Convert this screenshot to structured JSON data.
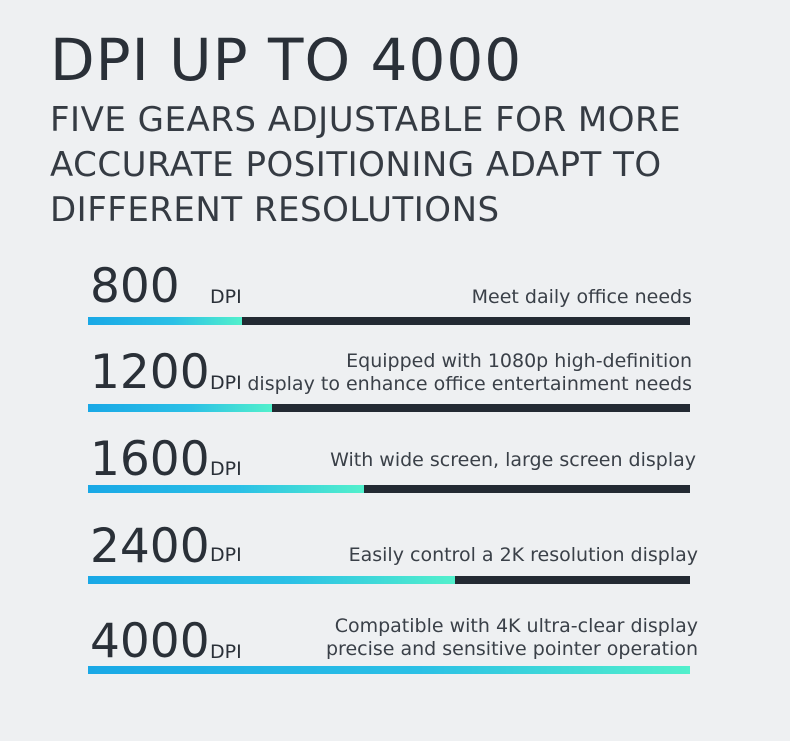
{
  "title": "DPI UP TO 4000",
  "subtitle": "FIVE GEARS ADJUSTABLE FOR MORE ACCURATE POSITIONING ADAPT TO DIFFERENT RESOLUTIONS",
  "unit": "DPI",
  "levels": [
    {
      "value": "800",
      "desc_line1": "Meet daily office needs",
      "desc_line2": "",
      "fill_fraction": 0.255
    },
    {
      "value": "1200",
      "desc_line1": "Equipped with 1080p high-definition",
      "desc_line2": "display to enhance office entertainment needs",
      "fill_fraction": 0.305
    },
    {
      "value": "1600",
      "desc_line1": "With wide screen, large screen display",
      "desc_line2": "",
      "fill_fraction": 0.458
    },
    {
      "value": "2400",
      "desc_line1": "Easily control a 2K resolution display",
      "desc_line2": "",
      "fill_fraction": 0.609
    },
    {
      "value": "4000",
      "desc_line1": "Compatible with 4K ultra-clear display",
      "desc_line2": "precise and sensitive pointer operation",
      "fill_fraction": 1.0
    }
  ],
  "colors": {
    "bar_track": "#232a33",
    "bar_fill_start": "#19a8e6",
    "bar_fill_end": "#52f0cc"
  }
}
